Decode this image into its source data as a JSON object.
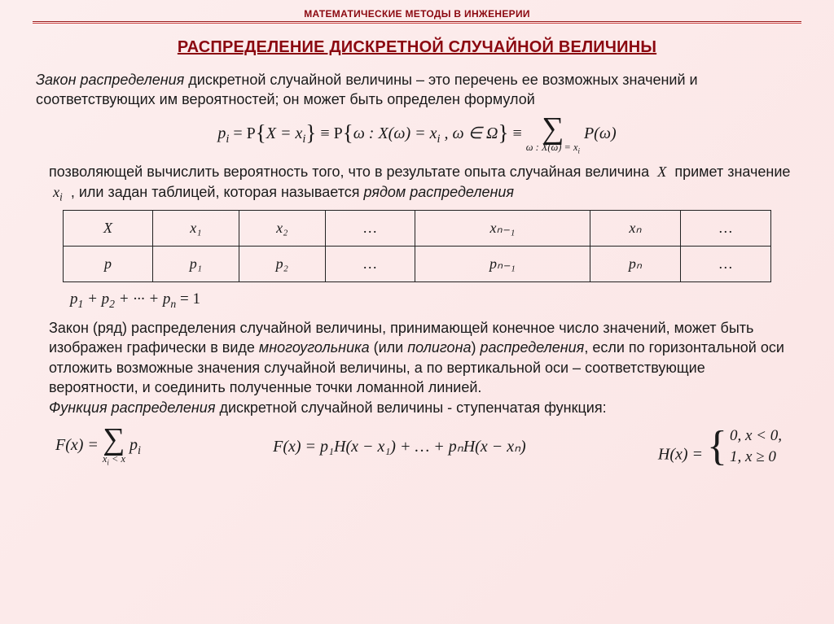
{
  "header": {
    "subtitle": "МАТЕМАТИЧЕСКИЕ МЕТОДЫ В ИНЖЕНЕРИИ",
    "rule_colors": [
      "#8b0810",
      "#c85050"
    ]
  },
  "title": "РАСПРЕДЕЛЕНИЕ ДИСКРЕТНОЙ СЛУЧАЙНОЙ ВЕЛИЧИНЫ",
  "intro": {
    "lead_italic": "Закон распределения",
    "body": " дискретной случайной величины – это перечень ее возможных значений и соответствующих им  вероятностей; он может быть определен формулой"
  },
  "formula1": {
    "lhs": "p",
    "lhs_sub": "i",
    "eq1": " = P",
    "set1_open": "{",
    "set1_body_a": "X = x",
    "set1_body_a_sub": "i",
    "set1_close": "}",
    "equiv1": " ≡ P",
    "set2_open": "{",
    "set2_body": "ω : X(ω) = x",
    "set2_body_sub": "i",
    "set2_tail": " , ω ∈ Ω",
    "set2_close": "}",
    "equiv2": " ≡ ",
    "sum_lower": "ω : X(ω) = x",
    "sum_lower_sub": "i",
    "sum_body": "P(ω)"
  },
  "para_after_formula": {
    "line1": "позволяющей вычислить вероятность того, что в результате опыта случайная величина ",
    "var_X": "X",
    "line2": " примет значение ",
    "var_xi": "x",
    "var_xi_sub": "i",
    "line3_a": " , или задан таблицей, которая называется ",
    "line3_em": "рядом распределения"
  },
  "table": {
    "columns": 7,
    "row1": [
      "X",
      "x₁",
      "x₂",
      "…",
      "xₙ₋₁",
      "xₙ",
      "…"
    ],
    "row2": [
      "p",
      "p₁",
      "p₂",
      "…",
      "pₙ₋₁",
      "pₙ",
      "…"
    ],
    "cell_fontsize": 18,
    "header_col_width": 110,
    "border_color": "#222222"
  },
  "eq_sum_to_one": {
    "text_a": "p",
    "s1": "1",
    "text_b": " + p",
    "s2": "2",
    "text_c": " + ··· + p",
    "s3": "n",
    "text_d": " = 1"
  },
  "para_polygon": {
    "t1": "Закон (ряд) распределения случайной величины, принимающей конечное число значений, может быть изображен графически в виде ",
    "em1": "многоугольника",
    "t2": " (или ",
    "em2": "полигона",
    "t3": ") ",
    "em3": "распределения",
    "t4": ", если по горизонтальной оси отложить возможные значения случайной величины, а по вертикальной оси – соответствующие вероятности, и соединить полученные точки ломанной линией.",
    "line2_em": "Функция распределения",
    "line2_rest": " дискретной случайной величины - ступенчатая функция:"
  },
  "formula_bottom": {
    "f1_lhs": "F(x) = ",
    "f1_sum_lower": "x",
    "f1_sum_lower_sub": "i",
    "f1_sum_lower_tail": " < x",
    "f1_body": "p",
    "f1_body_sub": "i",
    "f2": "F(x) = p₁H(x − x₁) + … + pₙH(x − xₙ)",
    "f3_lhs": "H(x) = ",
    "f3_case1": "0,    x < 0,",
    "f3_case2": "1,    x ≥ 0"
  },
  "style": {
    "bg_gradient_from": "#fceeee",
    "bg_gradient_to": "#fbe5e5",
    "accent_color": "#8b0810",
    "text_color": "#1a1a1a",
    "body_fontsize": 18,
    "title_fontsize": 20,
    "math_font": "Times New Roman"
  }
}
